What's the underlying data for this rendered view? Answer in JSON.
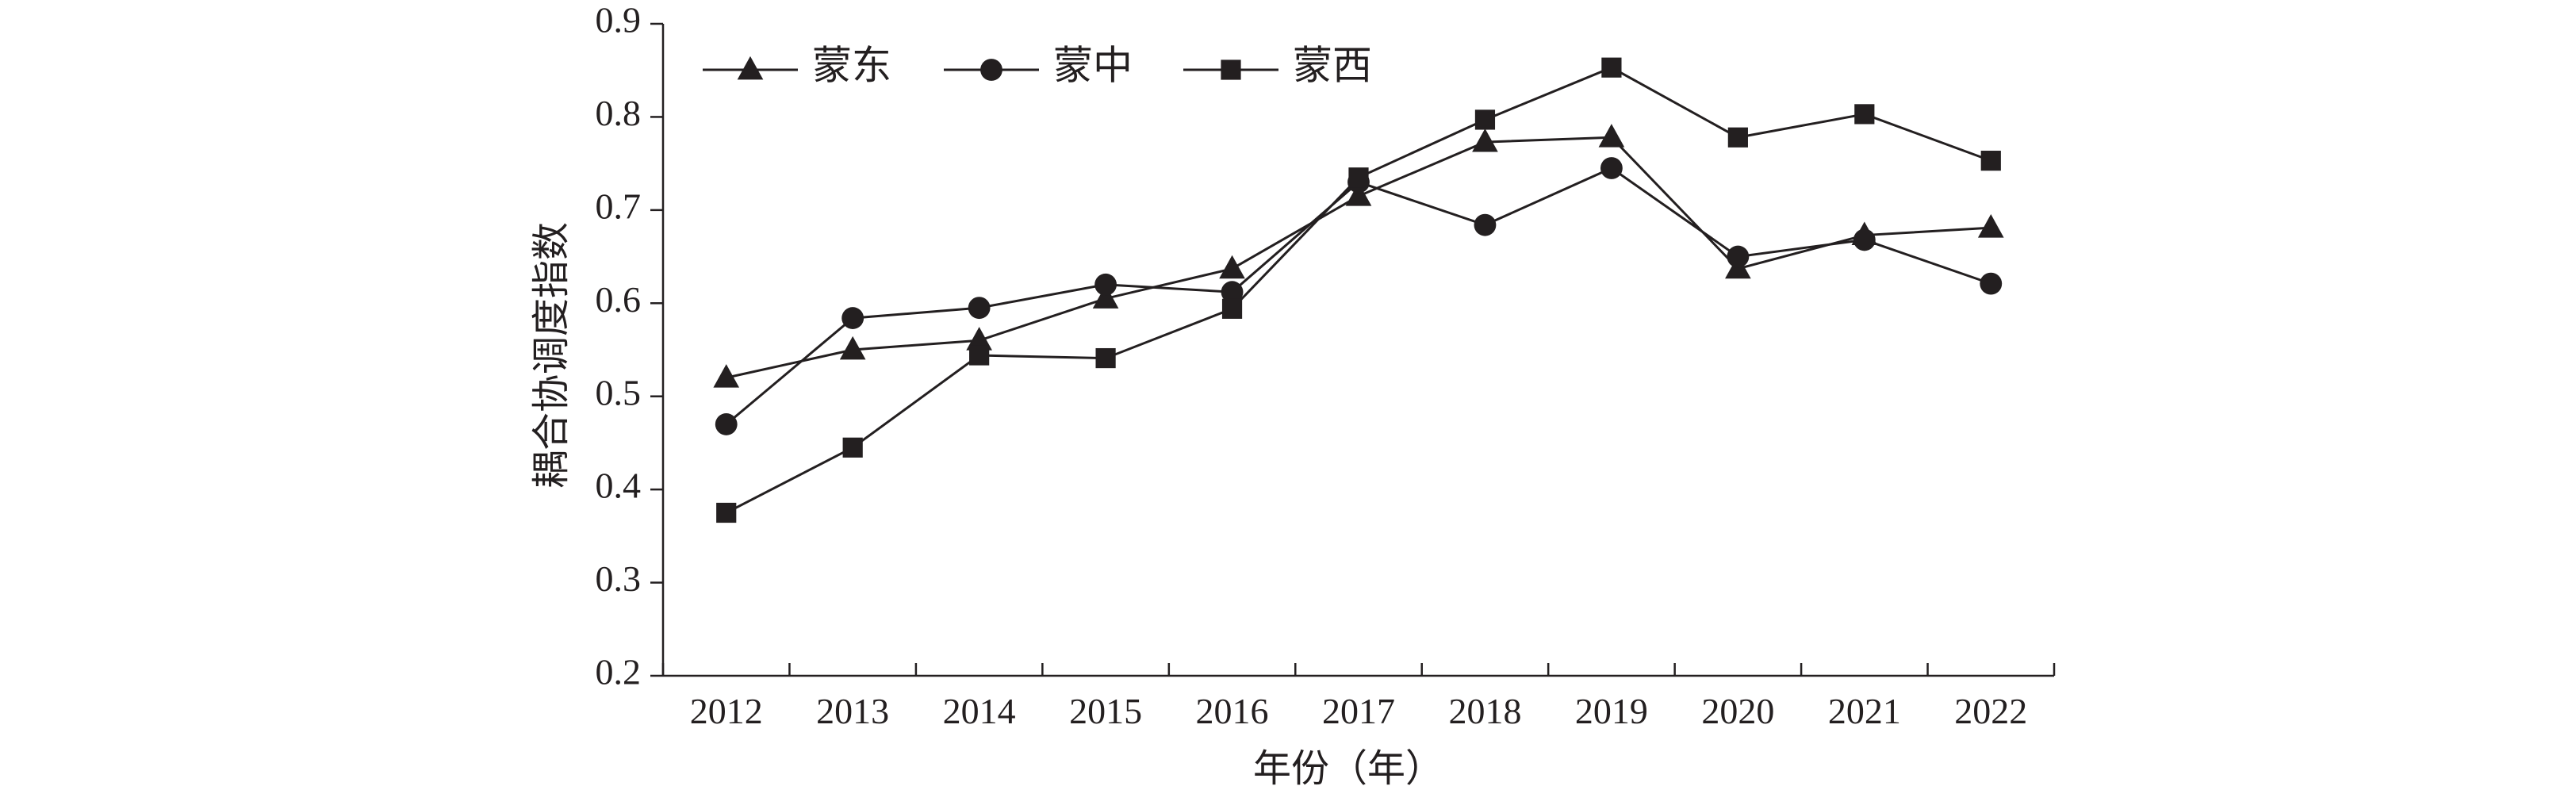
{
  "chart_data": {
    "type": "line",
    "title": "",
    "xlabel": "年份（年）",
    "ylabel": "耦合协调度指数",
    "categories": [
      "2012",
      "2013",
      "2014",
      "2015",
      "2016",
      "2017",
      "2018",
      "2019",
      "2020",
      "2021",
      "2022"
    ],
    "ylim": [
      0.2,
      0.9
    ],
    "yticks": [
      "0.2",
      "0.3",
      "0.4",
      "0.5",
      "0.6",
      "0.7",
      "0.8",
      "0.9"
    ],
    "grid": false,
    "legend_position": "top-left",
    "series": [
      {
        "name": "蒙东",
        "marker": "triangle",
        "values": [
          0.52,
          0.55,
          0.56,
          0.605,
          0.637,
          0.715,
          0.773,
          0.778,
          0.637,
          0.673,
          0.681
        ]
      },
      {
        "name": "蒙中",
        "marker": "circle",
        "values": [
          0.47,
          0.584,
          0.595,
          0.62,
          0.612,
          0.73,
          0.684,
          0.745,
          0.65,
          0.668,
          0.621
        ]
      },
      {
        "name": "蒙西",
        "marker": "square",
        "values": [
          0.375,
          0.445,
          0.544,
          0.541,
          0.594,
          0.735,
          0.797,
          0.853,
          0.778,
          0.803,
          0.753
        ]
      }
    ],
    "colors": {
      "line": "#231f20",
      "marker": "#231f20",
      "axis": "#231f20"
    }
  }
}
